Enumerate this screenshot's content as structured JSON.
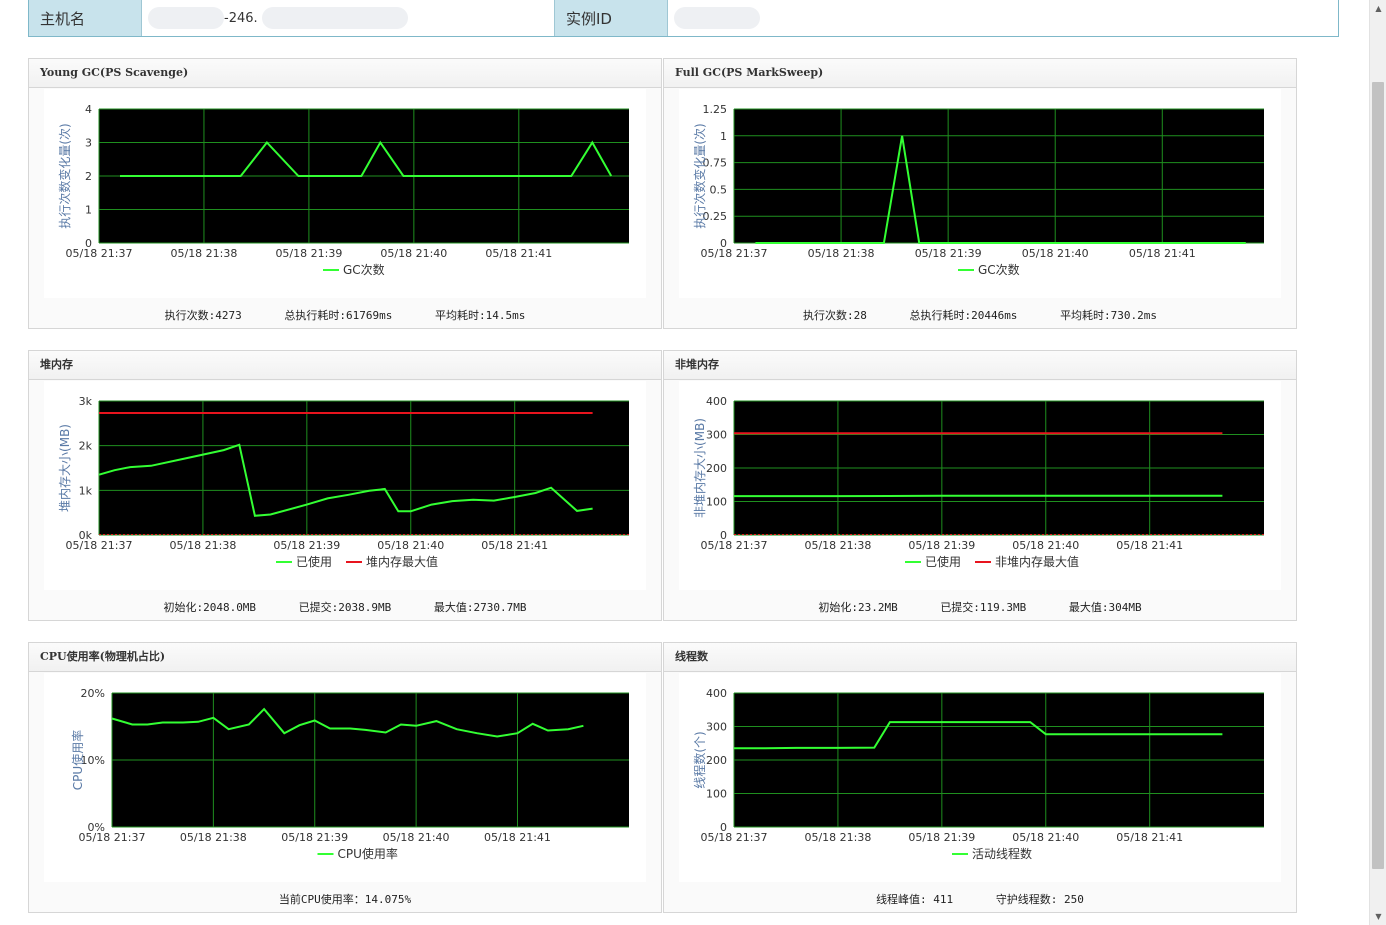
{
  "info": {
    "host_label": "主机名",
    "host_value": "-246.",
    "instance_label": "实例ID"
  },
  "colors": {
    "plot_bg": "#000000",
    "grid": "#1f8f1f",
    "series_used": "#33ff33",
    "series_max": "#e8141e",
    "axis_text": "#333333",
    "ylabel_text": "#5a7aa6"
  },
  "icons": {
    "scroll_up": "triangle-up-icon",
    "scroll_down": "triangle-down-icon"
  },
  "panels": [
    {
      "title": "Young GC(PS Scavenge)",
      "stats": [
        "执行次数:4273",
        "总执行耗时:61769ms",
        "平均耗时:14.5ms"
      ],
      "chart_data": {
        "type": "line",
        "ylabel": "执行次数变化量(次)",
        "ylim": [
          0,
          4
        ],
        "yticks": [
          "0",
          "1",
          "2",
          "3",
          "4"
        ],
        "ytick_values": [
          0,
          1,
          2,
          3,
          4
        ],
        "xticks": [
          "05/18 21:37",
          "05/18 21:38",
          "05/18 21:39",
          "05/18 21:40",
          "05/18 21:41"
        ],
        "xlim": [
          0,
          5.05
        ],
        "series": [
          {
            "name": "GC次数",
            "color": "#33ff33",
            "x": [
              0.2,
              1.0,
              1.35,
              1.6,
              1.9,
              2.0,
              2.5,
              2.68,
              2.9,
              3.0,
              3.5,
              4.0,
              4.5,
              4.7,
              4.88
            ],
            "y": [
              2,
              2,
              2,
              3,
              2,
              2,
              2,
              3,
              2,
              2,
              2,
              2,
              2,
              3,
              2
            ]
          }
        ]
      }
    },
    {
      "title": "Full GC(PS MarkSweep)",
      "stats": [
        "执行次数:28",
        "总执行耗时:20446ms",
        "平均耗时:730.2ms"
      ],
      "chart_data": {
        "type": "line",
        "ylabel": "执行次数变化量(次)",
        "ylim": [
          0,
          1.25
        ],
        "yticks": [
          "0",
          "0.25",
          "0.5",
          "0.75",
          "1",
          "1.25"
        ],
        "ytick_values": [
          0,
          0.25,
          0.5,
          0.75,
          1,
          1.25
        ],
        "xticks": [
          "05/18 21:37",
          "05/18 21:38",
          "05/18 21:39",
          "05/18 21:40",
          "05/18 21:41"
        ],
        "xlim": [
          0,
          4.95
        ],
        "series": [
          {
            "name": "GC次数",
            "color": "#33ff33",
            "x": [
              0.2,
              1.0,
              1.4,
              1.57,
              1.73,
              2.0,
              3.0,
              4.0,
              4.78
            ],
            "y": [
              0,
              0,
              0,
              1,
              0,
              0,
              0,
              0,
              0
            ]
          }
        ]
      }
    },
    {
      "title": "堆内存",
      "stats": [
        "初始化:2048.0MB",
        "已提交:2038.9MB",
        "最大值:2730.7MB"
      ],
      "chart_data": {
        "type": "line",
        "ylabel": "堆内存大小(MB)",
        "ylim": [
          0,
          3000
        ],
        "yticks": [
          "0k",
          "1k",
          "2k",
          "3k"
        ],
        "ytick_values": [
          0,
          1000,
          2000,
          3000
        ],
        "xticks": [
          "05/18 21:37",
          "05/18 21:38",
          "05/18 21:39",
          "05/18 21:40",
          "05/18 21:41"
        ],
        "xlim": [
          0,
          5.1
        ],
        "dashed_baseline_color": "#e8141e",
        "series": [
          {
            "name": "已使用",
            "color": "#33ff33",
            "x": [
              0.0,
              0.15,
              0.3,
              0.5,
              0.8,
              1.0,
              1.2,
              1.35,
              1.5,
              1.65,
              2.0,
              2.2,
              2.4,
              2.6,
              2.75,
              2.88,
              3.0,
              3.2,
              3.4,
              3.6,
              3.8,
              4.0,
              4.2,
              4.35,
              4.6,
              4.75
            ],
            "y": [
              1350,
              1450,
              1520,
              1550,
              1700,
              1800,
              1900,
              2020,
              430,
              460,
              680,
              820,
              900,
              990,
              1030,
              530,
              530,
              680,
              760,
              790,
              770,
              850,
              940,
              1060,
              540,
              590
            ]
          },
          {
            "name": "堆内存最大值",
            "color": "#e8141e",
            "x": [
              0.0,
              4.75
            ],
            "y": [
              2730.7,
              2730.7
            ]
          }
        ]
      }
    },
    {
      "title": "非堆内存",
      "stats": [
        "初始化:23.2MB",
        "已提交:119.3MB",
        "最大值:304MB"
      ],
      "chart_data": {
        "type": "line",
        "ylabel": "非堆内存大小(MB)",
        "ylim": [
          0,
          400
        ],
        "yticks": [
          "0",
          "100",
          "200",
          "300",
          "400"
        ],
        "ytick_values": [
          0,
          100,
          200,
          300,
          400
        ],
        "xticks": [
          "05/18 21:37",
          "05/18 21:38",
          "05/18 21:39",
          "05/18 21:40",
          "05/18 21:41"
        ],
        "xlim": [
          0,
          5.1
        ],
        "dashed_baseline_color": "#e8141e",
        "series": [
          {
            "name": "已使用",
            "color": "#33ff33",
            "x": [
              0.0,
              1.0,
              2.0,
              3.0,
              4.0,
              4.7
            ],
            "y": [
              116,
              116,
              117,
              117,
              117,
              117
            ]
          },
          {
            "name": "非堆内存最大值",
            "color": "#e8141e",
            "x": [
              0.0,
              4.7
            ],
            "y": [
              304,
              304
            ]
          }
        ]
      }
    },
    {
      "title": "CPU使用率(物理机占比)",
      "stats": [
        "当前CPU使用率：14.075%"
      ],
      "chart_data": {
        "type": "line",
        "ylabel": "CPU使用率",
        "ylim": [
          0,
          20
        ],
        "yticks": [
          "0%",
          "10%",
          "20%"
        ],
        "ytick_values": [
          0,
          10,
          20
        ],
        "xticks": [
          "05/18 21:37",
          "05/18 21:38",
          "05/18 21:39",
          "05/18 21:40",
          "05/18 21:41"
        ],
        "xlim": [
          0,
          5.1
        ],
        "series": [
          {
            "name": "CPU使用率",
            "color": "#33ff33",
            "x": [
              0.0,
              0.2,
              0.35,
              0.5,
              0.7,
              0.85,
              1.0,
              1.15,
              1.35,
              1.5,
              1.7,
              1.85,
              2.0,
              2.15,
              2.35,
              2.5,
              2.7,
              2.85,
              3.0,
              3.2,
              3.4,
              3.6,
              3.8,
              4.0,
              4.15,
              4.3,
              4.5,
              4.65
            ],
            "y": [
              16.2,
              15.3,
              15.3,
              15.6,
              15.6,
              15.7,
              16.3,
              14.6,
              15.3,
              17.6,
              14.0,
              15.2,
              15.9,
              14.7,
              14.7,
              14.5,
              14.1,
              15.3,
              15.1,
              15.8,
              14.6,
              14.0,
              13.5,
              14.0,
              15.4,
              14.4,
              14.6,
              15.1
            ]
          }
        ]
      }
    },
    {
      "title": "线程数",
      "stats": [
        "线程峰值: 411",
        "守护线程数: 250"
      ],
      "chart_data": {
        "type": "line",
        "ylabel": "线程数(个)",
        "ylim": [
          0,
          400
        ],
        "yticks": [
          "0",
          "100",
          "200",
          "300",
          "400"
        ],
        "ytick_values": [
          0,
          100,
          200,
          300,
          400
        ],
        "xticks": [
          "05/18 21:37",
          "05/18 21:38",
          "05/18 21:39",
          "05/18 21:40",
          "05/18 21:41"
        ],
        "xlim": [
          0,
          5.1
        ],
        "series": [
          {
            "name": "活动线程数",
            "color": "#33ff33",
            "x": [
              0.0,
              0.3,
              0.6,
              1.0,
              1.35,
              1.5,
              1.8,
              2.0,
              2.5,
              2.85,
              3.0,
              3.5,
              4.0,
              4.7
            ],
            "y": [
              235,
              235,
              236,
              236,
              237,
              313,
              313,
              313,
              313,
              313,
              277,
              277,
              277,
              277
            ]
          }
        ]
      }
    }
  ]
}
